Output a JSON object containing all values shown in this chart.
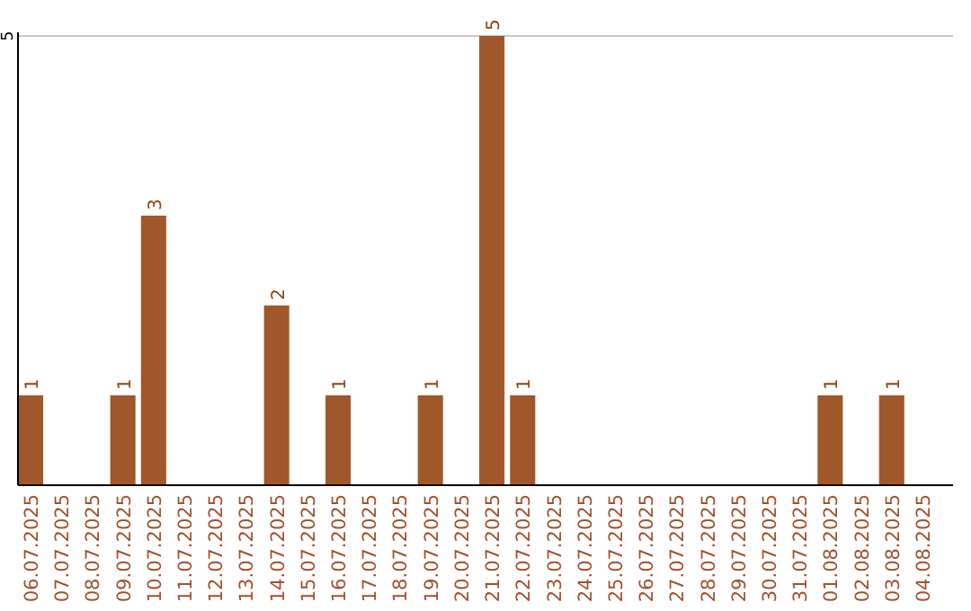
{
  "chart_data": {
    "type": "bar",
    "categories": [
      "06.07.2025",
      "07.07.2025",
      "08.07.2025",
      "09.07.2025",
      "10.07.2025",
      "11.07.2025",
      "12.07.2025",
      "13.07.2025",
      "14.07.2025",
      "15.07.2025",
      "16.07.2025",
      "17.07.2025",
      "18.07.2025",
      "19.07.2025",
      "20.07.2025",
      "21.07.2025",
      "22.07.2025",
      "23.07.2025",
      "24.07.2025",
      "25.07.2025",
      "26.07.2025",
      "27.07.2025",
      "28.07.2025",
      "29.07.2025",
      "30.07.2025",
      "31.07.2025",
      "01.08.2025",
      "02.08.2025",
      "03.08.2025",
      "04.08.2025"
    ],
    "values": [
      1,
      0,
      0,
      1,
      3,
      0,
      0,
      0,
      2,
      0,
      1,
      0,
      0,
      1,
      0,
      5,
      1,
      0,
      0,
      0,
      0,
      0,
      0,
      0,
      0,
      0,
      1,
      0,
      1,
      0
    ],
    "value_labels": [
      "1",
      null,
      null,
      "1",
      "3",
      null,
      null,
      null,
      "2",
      null,
      "1",
      null,
      null,
      "1",
      null,
      "5",
      "1",
      null,
      null,
      null,
      null,
      null,
      null,
      null,
      null,
      null,
      "1",
      null,
      "1",
      null
    ],
    "color": "#a0572a",
    "ylim": [
      0,
      5
    ],
    "yticks": [
      5
    ],
    "ref_lines": [
      {
        "axis": "y",
        "value": 5,
        "color": "#c8c8c8"
      }
    ]
  }
}
